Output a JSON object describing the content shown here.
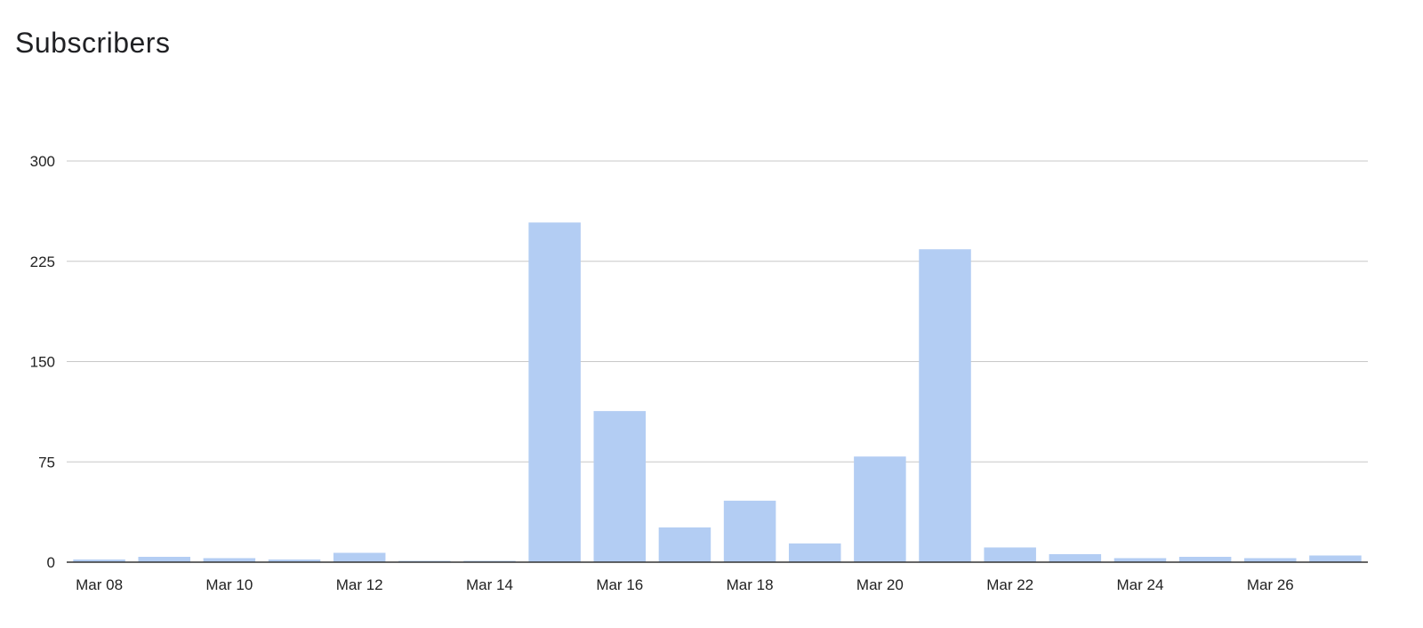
{
  "chart_data": {
    "type": "bar",
    "title": "Subscribers",
    "xlabel": "",
    "ylabel": "",
    "categories": [
      "Mar 08",
      "Mar 09",
      "Mar 10",
      "Mar 11",
      "Mar 12",
      "Mar 13",
      "Mar 14",
      "Mar 15",
      "Mar 16",
      "Mar 17",
      "Mar 18",
      "Mar 19",
      "Mar 20",
      "Mar 21",
      "Mar 22",
      "Mar 23",
      "Mar 24",
      "Mar 25",
      "Mar 26",
      "Mar 27"
    ],
    "x_tick_labels": [
      "Mar 08",
      "Mar 10",
      "Mar 12",
      "Mar 14",
      "Mar 16",
      "Mar 18",
      "Mar 20",
      "Mar 22",
      "Mar 24",
      "Mar 26"
    ],
    "values": [
      2,
      4,
      3,
      2,
      7,
      1,
      1,
      254,
      113,
      26,
      46,
      14,
      79,
      234,
      11,
      6,
      3,
      4,
      3,
      5
    ],
    "ylim": [
      0,
      300
    ],
    "y_ticks": [
      0,
      75,
      150,
      225,
      300
    ],
    "grid": true,
    "legend": "none",
    "bar_color": "#b3cdf3",
    "grid_color": "#c8c8c8",
    "axis_color": "#333333"
  }
}
